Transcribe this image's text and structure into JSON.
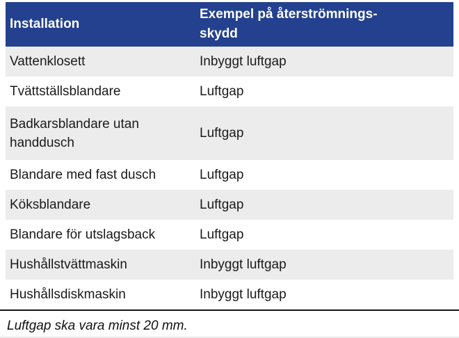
{
  "colors": {
    "header_bg": "#24418f",
    "header_text": "#ffffff",
    "stripe_bg": "#ececec",
    "body_text": "#1a1a1a",
    "rule": "#141414"
  },
  "table": {
    "header": {
      "col1": "Installation",
      "col2_line1": "Exempel på återströmnings-",
      "col2_line2": "skydd"
    },
    "rows": [
      {
        "installation": "Vattenklosett",
        "protection": "Inbyggt luftgap"
      },
      {
        "installation": "Tvättställsblandare",
        "protection": "Luftgap"
      },
      {
        "installation": "Badkarsblandare utan handdusch",
        "protection": "Luftgap"
      },
      {
        "installation": "Blandare med fast dusch",
        "protection": "Luftgap"
      },
      {
        "installation": "Köksblandare",
        "protection": "Luftgap"
      },
      {
        "installation": "Blandare för utslagsback",
        "protection": "Luftgap"
      },
      {
        "installation": "Hushållstvättmaskin",
        "protection": "Inbyggt luftgap"
      },
      {
        "installation": "Hushållsdiskmaskin",
        "protection": "Inbyggt luftgap"
      }
    ],
    "footnote": "Luftgap ska vara minst 20 mm."
  }
}
